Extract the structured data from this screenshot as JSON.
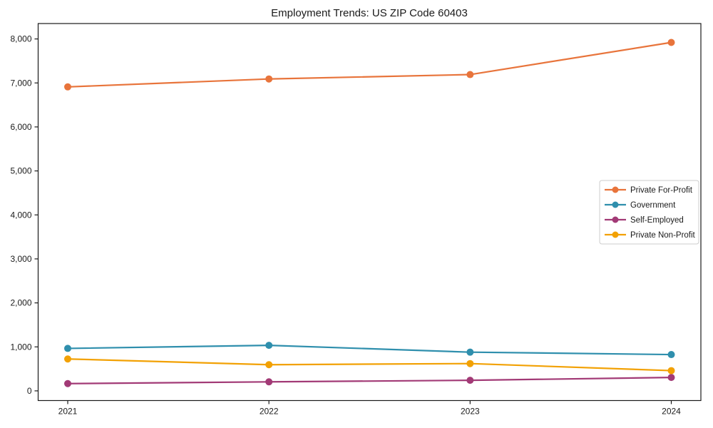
{
  "chart_data": {
    "type": "line",
    "title": "Employment Trends: US ZIP Code 60403",
    "xlabel": "",
    "ylabel": "",
    "x": [
      "2021",
      "2022",
      "2023",
      "2024"
    ],
    "series": [
      {
        "name": "Private For-Profit",
        "color": "#E8743B",
        "values": [
          6910,
          7090,
          7190,
          7920
        ]
      },
      {
        "name": "Government",
        "color": "#2F8FAD",
        "values": [
          965,
          1035,
          880,
          825
        ]
      },
      {
        "name": "Self-Employed",
        "color": "#A23A76",
        "values": [
          165,
          205,
          240,
          305
        ]
      },
      {
        "name": "Private Non-Profit",
        "color": "#F2A104",
        "values": [
          725,
          595,
          620,
          460
        ]
      }
    ],
    "ylim": [
      0,
      8000
    ],
    "ytick_step": 1000,
    "ytick_labels": [
      "0",
      "1,000",
      "2,000",
      "3,000",
      "4,000",
      "5,000",
      "6,000",
      "7,000",
      "8,000"
    ],
    "grid": false,
    "legend_position": "center-right",
    "marker": "circle",
    "frame": "full-box"
  }
}
